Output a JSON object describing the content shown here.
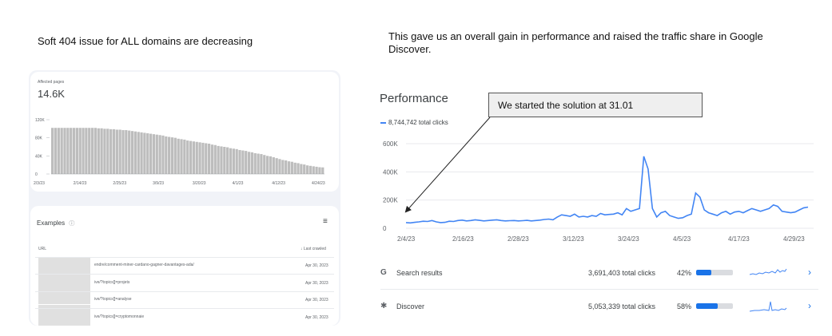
{
  "left": {
    "heading": "Soft 404 issue for ALL domains are decreasing",
    "affected_label": "Affected pages",
    "affected_value": "14.6K",
    "chart_data": {
      "type": "bar",
      "title": "",
      "xlabel": "",
      "ylabel": "",
      "ylim": [
        0,
        120000
      ],
      "y_ticks": [
        "120K",
        "80K",
        "40K",
        "0"
      ],
      "x_ticks": [
        "2/3/23",
        "2/14/23",
        "2/25/23",
        "3/9/23",
        "3/20/23",
        "4/1/23",
        "4/12/23",
        "4/24/23"
      ],
      "values": [
        102000,
        102000,
        102000,
        102000,
        102000,
        102000,
        102000,
        102000,
        102000,
        102000,
        102000,
        102000,
        102000,
        102000,
        102000,
        101000,
        101000,
        100000,
        100000,
        99000,
        99000,
        98000,
        98000,
        97000,
        97000,
        96000,
        95000,
        94000,
        93000,
        92000,
        91000,
        90000,
        89000,
        88000,
        87000,
        86000,
        85000,
        83000,
        82000,
        81000,
        80000,
        78000,
        77000,
        76000,
        74000,
        73000,
        72000,
        71000,
        70000,
        69000,
        68000,
        67000,
        65000,
        64000,
        62000,
        61000,
        60000,
        59000,
        57000,
        56000,
        55000,
        53000,
        52000,
        51000,
        49000,
        48000,
        46000,
        45000,
        44000,
        42000,
        40000,
        39000,
        37000,
        35000,
        33000,
        31000,
        30000,
        28000,
        27000,
        25000,
        24000,
        22000,
        21000,
        19000,
        18000,
        17000,
        16000,
        15000,
        14600
      ]
    },
    "examples": {
      "title": "Examples",
      "col_url": "URL",
      "col_crawled": "Last crawled",
      "rows": [
        {
          "url": "endre/comment-miner-cardano-gagner-davantages-ada/",
          "date": "Apr 30, 2023"
        },
        {
          "url": "ive/?topics[]=projets",
          "date": "Apr 30, 2023"
        },
        {
          "url": "ive/?topics[]=analyse",
          "date": "Apr 30, 2023"
        },
        {
          "url": "ive/?topics[]=cryptomonnaie",
          "date": "Apr 30, 2023"
        }
      ]
    }
  },
  "right": {
    "heading": "This gave us an overall gain in performance and raised the traffic share in Google Discover.",
    "callout": "We started the solution at 31.01",
    "perf_title": "Performance",
    "total_clicks": "8,744,742 total clicks",
    "colors": {
      "line": "#4285f4",
      "bar": "#1a73e8"
    },
    "chart_data": {
      "type": "line",
      "title": "",
      "xlabel": "",
      "ylabel": "",
      "ylim": [
        0,
        600000
      ],
      "y_ticks": [
        "600K",
        "400K",
        "200K",
        "0"
      ],
      "x_ticks": [
        "2/4/23",
        "2/16/23",
        "2/28/23",
        "3/12/23",
        "3/24/23",
        "4/5/23",
        "4/17/23",
        "4/29/23"
      ],
      "series": [
        {
          "values": [
            40000,
            38000,
            42000,
            45000,
            50000,
            48000,
            55000,
            45000,
            40000,
            42000,
            50000,
            48000,
            55000,
            58000,
            52000,
            55000,
            60000,
            56000,
            52000,
            55000,
            58000,
            60000,
            55000,
            52000,
            54000,
            55000,
            52000,
            54000,
            56000,
            52000,
            55000,
            58000,
            62000,
            65000,
            60000,
            80000,
            95000,
            90000,
            85000,
            100000,
            80000,
            85000,
            80000,
            90000,
            85000,
            105000,
            95000,
            98000,
            100000,
            110000,
            95000,
            140000,
            120000,
            130000,
            140000,
            510000,
            420000,
            140000,
            80000,
            110000,
            120000,
            90000,
            80000,
            70000,
            75000,
            90000,
            100000,
            250000,
            220000,
            130000,
            110000,
            100000,
            90000,
            110000,
            120000,
            100000,
            115000,
            120000,
            110000,
            125000,
            140000,
            130000,
            120000,
            130000,
            140000,
            165000,
            155000,
            120000,
            115000,
            110000,
            115000,
            130000,
            145000,
            150000
          ]
        }
      ]
    },
    "rows": [
      {
        "icon": "G",
        "label": "Search results",
        "clicks": "3,691,403 total clicks",
        "pct": "42%",
        "share": 0.42
      },
      {
        "icon": "✱",
        "label": "Discover",
        "clicks": "5,053,339 total clicks",
        "pct": "58%",
        "share": 0.58
      }
    ]
  }
}
